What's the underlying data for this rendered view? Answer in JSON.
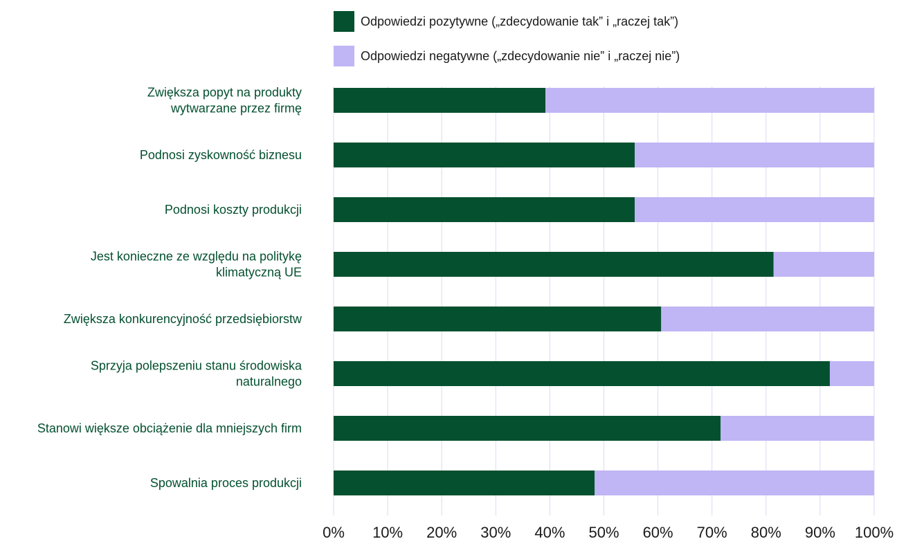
{
  "chart_data": {
    "type": "bar",
    "orientation": "horizontal",
    "stacked": true,
    "categories": [
      [
        "Zwiększa popyt na produkty",
        "wytwarzane przez firmę"
      ],
      [
        "Podnosi zyskowność biznesu"
      ],
      [
        "Podnosi koszty produkcji"
      ],
      [
        "Jest konieczne ze względu na politykę",
        "klimatyczną UE"
      ],
      [
        "Zwiększa konkurencyjność przedsiębiorstw"
      ],
      [
        "Sprzyja polepszeniu stanu środowiska",
        "naturalnego"
      ],
      [
        "Stanowi większe obciążenie dla mniejszych firm"
      ],
      [
        "Spowalnia proces produkcji"
      ]
    ],
    "series": [
      {
        "name": "Odpowiedzi pozytywne („zdecydowanie tak” i „raczej tak”)",
        "color": "#04502f",
        "values": [
          39.2,
          55.7,
          55.7,
          81.4,
          60.6,
          91.8,
          71.6,
          48.3
        ]
      },
      {
        "name": "Odpowiedzi negatywne („zdecydowanie nie” i „raczej nie”)",
        "color": "#c0b5f5",
        "values": [
          60.8,
          44.3,
          44.3,
          18.6,
          39.4,
          8.2,
          28.4,
          51.7
        ]
      }
    ],
    "xlim": [
      0,
      100
    ],
    "xticks": [
      "0%",
      "10%",
      "20%",
      "30%",
      "40%",
      "50%",
      "60%",
      "70%",
      "80%",
      "90%",
      "100%"
    ],
    "grid": "vertical",
    "legend_position": "top",
    "label_color": "#04502f",
    "gridline_color": "#ddd8f2"
  }
}
